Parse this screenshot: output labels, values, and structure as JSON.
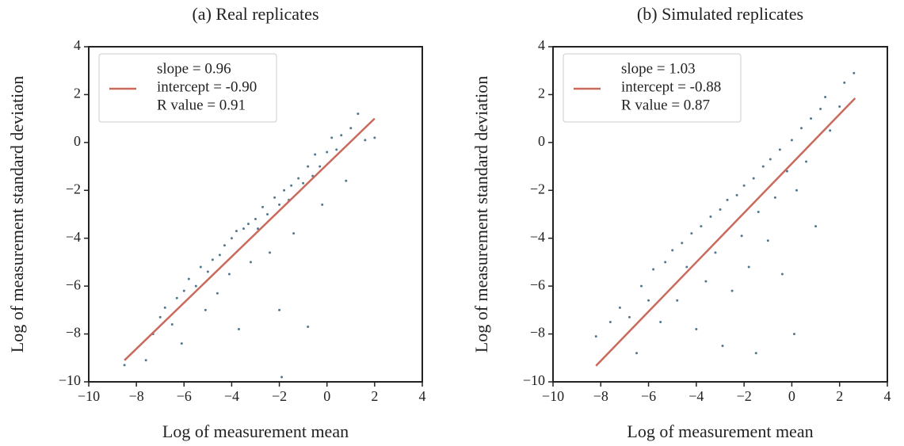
{
  "chart_data": [
    {
      "type": "scatter",
      "title": "(a) Real replicates",
      "xlabel": "Log of measurement mean",
      "ylabel": "Log of measurement standard deviation",
      "xlim": [
        -10,
        4
      ],
      "ylim": [
        -10,
        4
      ],
      "xticks": [
        {
          "value": -10,
          "label": "−10"
        },
        {
          "value": -8,
          "label": "−8"
        },
        {
          "value": -6,
          "label": "−6"
        },
        {
          "value": -4,
          "label": "−4"
        },
        {
          "value": -2,
          "label": "−2"
        },
        0,
        2,
        4
      ],
      "yticks": [
        {
          "value": -10,
          "label": "−10"
        },
        {
          "value": -8,
          "label": "−8"
        },
        {
          "value": -6,
          "label": "−6"
        },
        {
          "value": -4,
          "label": "−4"
        },
        {
          "value": -2,
          "label": "−2"
        },
        0,
        2,
        4
      ],
      "legend": [
        "slope = 0.96",
        "intercept = -0.90",
        "R value = 0.91"
      ],
      "series": [
        {
          "color": "#52788f",
          "x": [
            -8.5,
            -7.6,
            -7.3,
            -7.0,
            -6.8,
            -6.5,
            -6.3,
            -6.1,
            -6.0,
            -5.8,
            -5.5,
            -5.3,
            -5.1,
            -5.0,
            -4.8,
            -4.6,
            -4.5,
            -4.3,
            -4.1,
            -4.0,
            -3.8,
            -3.7,
            -3.5,
            -3.3,
            -3.2,
            -3.0,
            -2.9,
            -2.7,
            -2.5,
            -2.4,
            -2.2,
            -2.0,
            -2.0,
            -1.9,
            -1.8,
            -1.6,
            -1.5,
            -1.4,
            -1.2,
            -1.0,
            -0.8,
            -0.8,
            -0.6,
            -0.5,
            -0.3,
            -0.2,
            0.0,
            0.2,
            0.4,
            0.6,
            0.8,
            1.0,
            1.3,
            1.6,
            2.0
          ],
          "values": [
            -9.3,
            -9.1,
            -8.0,
            -7.3,
            -6.9,
            -7.6,
            -6.5,
            -8.4,
            -6.2,
            -5.7,
            -6.0,
            -5.2,
            -7.0,
            -5.4,
            -4.9,
            -6.3,
            -4.7,
            -4.3,
            -5.5,
            -4.0,
            -3.7,
            -7.8,
            -3.6,
            -3.4,
            -5.0,
            -3.2,
            -3.6,
            -2.7,
            -3.0,
            -4.6,
            -2.3,
            -7.0,
            -2.6,
            -9.8,
            -2.0,
            -2.4,
            -1.8,
            -3.8,
            -1.5,
            -1.7,
            -1.0,
            -7.7,
            -1.4,
            -0.5,
            -1.0,
            -2.6,
            -0.4,
            0.2,
            -0.3,
            0.3,
            -1.6,
            0.6,
            1.2,
            0.1,
            0.2
          ]
        }
      ],
      "fit": {
        "color": "#c96a5c",
        "x": [
          -8.5,
          2.0
        ],
        "values": [
          -9.1,
          1.0
        ]
      }
    },
    {
      "type": "scatter",
      "title": "(b) Simulated replicates",
      "xlabel": "Log of measurement mean",
      "ylabel": "Log of measurement standard deviation",
      "xlim": [
        -10,
        4
      ],
      "ylim": [
        -10,
        4
      ],
      "xticks": [
        {
          "value": -10,
          "label": "−10"
        },
        {
          "value": -8,
          "label": "−8"
        },
        {
          "value": -6,
          "label": "−6"
        },
        {
          "value": -4,
          "label": "−4"
        },
        {
          "value": -2,
          "label": "−2"
        },
        0,
        2,
        4
      ],
      "yticks": [
        {
          "value": -10,
          "label": "−10"
        },
        {
          "value": -8,
          "label": "−8"
        },
        {
          "value": -6,
          "label": "−6"
        },
        {
          "value": -4,
          "label": "−4"
        },
        {
          "value": -2,
          "label": "−2"
        },
        0,
        2,
        4
      ],
      "legend": [
        "slope = 1.03",
        "intercept = -0.88",
        "R value = 0.87"
      ],
      "series": [
        {
          "color": "#52788f",
          "x": [
            -8.2,
            -7.6,
            -7.2,
            -6.8,
            -6.5,
            -6.3,
            -6.0,
            -5.8,
            -5.5,
            -5.3,
            -5.0,
            -4.8,
            -4.6,
            -4.4,
            -4.2,
            -4.0,
            -3.8,
            -3.6,
            -3.4,
            -3.2,
            -3.0,
            -2.9,
            -2.7,
            -2.5,
            -2.3,
            -2.1,
            -2.0,
            -1.8,
            -1.6,
            -1.5,
            -1.4,
            -1.2,
            -1.0,
            -0.9,
            -0.7,
            -0.5,
            -0.4,
            -0.2,
            0.0,
            0.1,
            0.2,
            0.4,
            0.6,
            0.8,
            1.0,
            1.2,
            1.4,
            1.6,
            2.0,
            2.2,
            2.6
          ],
          "values": [
            -8.1,
            -7.5,
            -6.9,
            -7.3,
            -8.8,
            -6.0,
            -6.6,
            -5.3,
            -7.5,
            -5.0,
            -4.5,
            -6.6,
            -4.2,
            -5.2,
            -3.8,
            -7.8,
            -3.5,
            -5.8,
            -3.1,
            -4.6,
            -2.8,
            -8.5,
            -2.4,
            -6.2,
            -2.2,
            -3.9,
            -1.8,
            -5.2,
            -1.5,
            -8.8,
            -2.9,
            -1.0,
            -4.1,
            -0.7,
            -2.3,
            -0.3,
            -5.5,
            -1.2,
            0.1,
            -8.0,
            -2.0,
            0.6,
            -0.8,
            1.0,
            -3.5,
            1.4,
            1.9,
            0.5,
            1.5,
            2.5,
            2.9
          ]
        }
      ],
      "fit": {
        "color": "#c96a5c",
        "x": [
          -8.2,
          2.65
        ],
        "values": [
          -9.33,
          1.85
        ]
      }
    }
  ]
}
